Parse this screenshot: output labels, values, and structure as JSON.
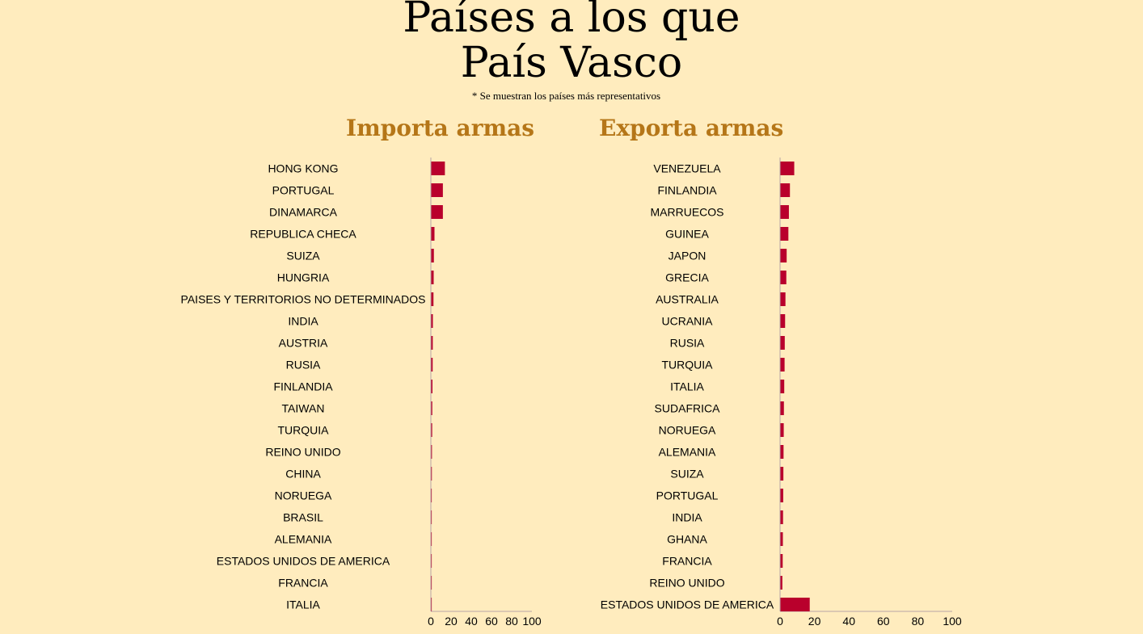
{
  "header": {
    "title_line1": "Países a los que",
    "title_line2": "País Vasco",
    "note": "* Se muestran los países más representativos"
  },
  "colors": {
    "background": "#ffecbe",
    "bar": "#b9002c",
    "panel_title": "#b57618",
    "axis": "#b7a5a5"
  },
  "chart_data": [
    {
      "type": "bar",
      "orientation": "horizontal",
      "title": "Importa armas",
      "xlim": [
        0,
        100
      ],
      "xticks": [
        0,
        20,
        40,
        60,
        80,
        100
      ],
      "categories": [
        "HONG KONG",
        "PORTUGAL",
        "DINAMARCA",
        "REPUBLICA CHECA",
        "SUIZA",
        "HUNGRIA",
        "PAISES Y TERRITORIOS NO DETERMINADOS",
        "INDIA",
        "AUSTRIA",
        "RUSIA",
        "FINLANDIA",
        "TAIWAN",
        "TURQUIA",
        "REINO UNIDO",
        "CHINA",
        "NORUEGA",
        "BRASIL",
        "ALEMANIA",
        "ESTADOS UNIDOS DE AMERICA",
        "FRANCIA",
        "ITALIA"
      ],
      "values": [
        13.5,
        11.5,
        11.5,
        3.2,
        2.6,
        2.4,
        2.2,
        1.6,
        1.5,
        1.4,
        1.2,
        1.0,
        0.9,
        0.7,
        0.6,
        0.4,
        0.3,
        0.25,
        0.2,
        0.15,
        0.1
      ]
    },
    {
      "type": "bar",
      "orientation": "horizontal",
      "title": "Exporta armas",
      "xlim": [
        0,
        100
      ],
      "xticks": [
        0,
        20,
        40,
        60,
        80,
        100
      ],
      "categories": [
        "VENEZUELA",
        "FINLANDIA",
        "MARRUECOS",
        "GUINEA",
        "JAPON",
        "GRECIA",
        "AUSTRALIA",
        "UCRANIA",
        "RUSIA",
        "TURQUIA",
        "ITALIA",
        "SUDAFRICA",
        "NORUEGA",
        "ALEMANIA",
        "SUIZA",
        "PORTUGAL",
        "INDIA",
        "GHANA",
        "FRANCIA",
        "REINO UNIDO",
        "ESTADOS UNIDOS DE AMERICA"
      ],
      "values": [
        8.0,
        5.5,
        4.9,
        4.6,
        3.6,
        3.4,
        2.9,
        2.7,
        2.5,
        2.4,
        2.2,
        2.0,
        1.9,
        1.8,
        1.7,
        1.6,
        1.5,
        1.4,
        1.3,
        1.1,
        17.0
      ]
    }
  ]
}
